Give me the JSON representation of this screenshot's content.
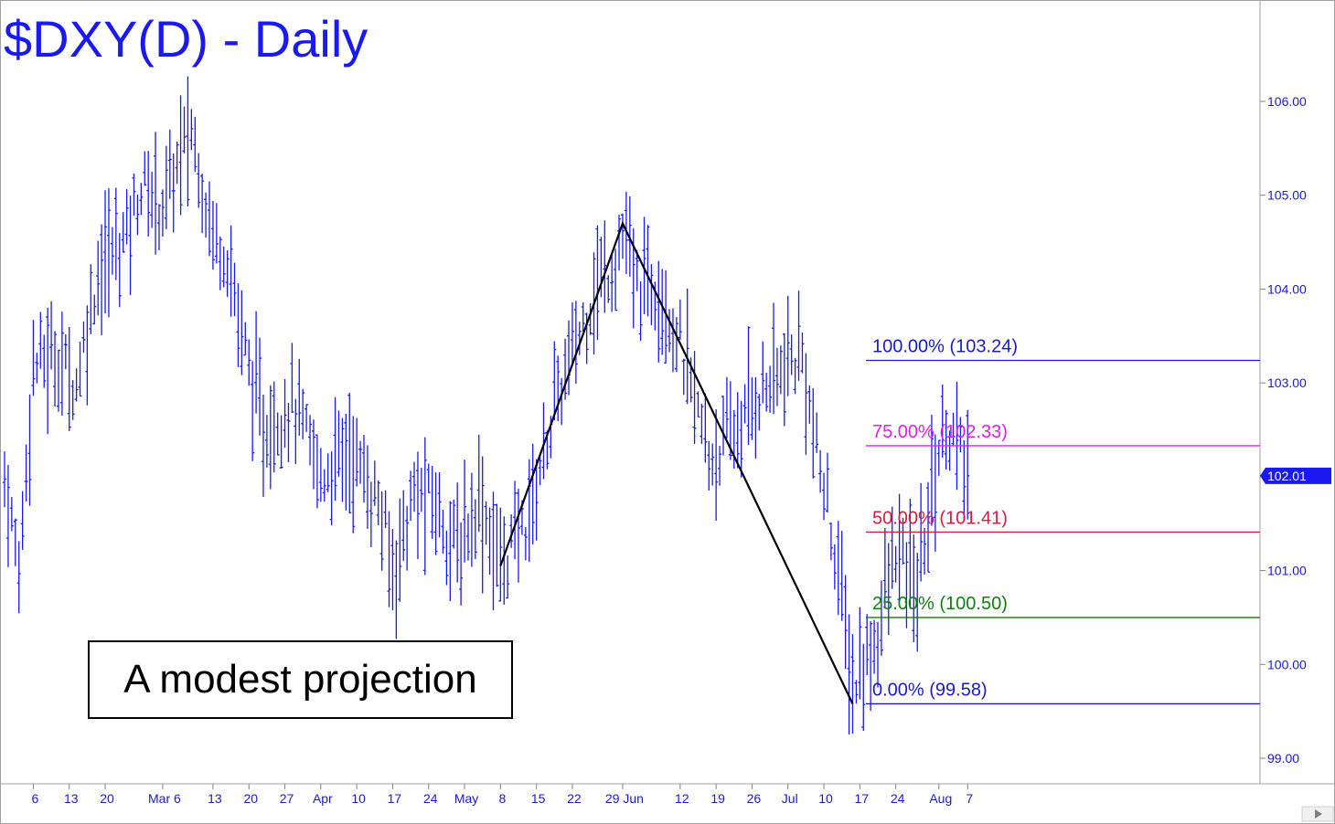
{
  "chart_data": {
    "type": "ohlc",
    "title": "$DXY(D) - Daily",
    "last_price_label": "102.01",
    "last_price": 102.01,
    "ylim": [
      98.7,
      107.0
    ],
    "y_ticks": [
      "99.00",
      "100.00",
      "101.00",
      "102.00",
      "103.00",
      "104.00",
      "105.00",
      "106.00"
    ],
    "y_tick_values": [
      99,
      100,
      101,
      102,
      103,
      104,
      105,
      106
    ],
    "x_tick_labels": [
      "6",
      "13",
      "20",
      "Mar 6",
      "13",
      "20",
      "27",
      "Apr",
      "10",
      "17",
      "24",
      "May",
      "8",
      "15",
      "22",
      "29 Jun",
      "12",
      "19",
      "26",
      "Jul",
      "10",
      "17",
      "24",
      "Aug",
      "7"
    ],
    "x_tick_bar_index": [
      8,
      18,
      28,
      44,
      58,
      68,
      78,
      88,
      98,
      108,
      118,
      128,
      138,
      148,
      158,
      172,
      188,
      198,
      208,
      218,
      228,
      238,
      248,
      260,
      268
    ],
    "bars_series": "DXY daily OHLC (approximate)",
    "fib_levels": [
      {
        "label": "100.00% (103.24)",
        "value": 103.24,
        "color": "#1a1acd"
      },
      {
        "label": "75.00% (102.33)",
        "value": 102.33,
        "color": "#e020e0"
      },
      {
        "label": "50.00% (101.41)",
        "value": 101.41,
        "color": "#d02040"
      },
      {
        "label": "25.00% (100.50)",
        "value": 100.5,
        "color": "#108010"
      },
      {
        "label": "0.00% (99.58)",
        "value": 99.58,
        "color": "#1a1acd"
      }
    ],
    "swing_line": [
      {
        "bar": 138,
        "price": 101.05
      },
      {
        "bar": 172,
        "price": 104.7
      },
      {
        "bar": 236,
        "price": 99.58
      }
    ],
    "annotation": "A modest projection",
    "bar_color": "#1a1af0",
    "grid": false
  }
}
